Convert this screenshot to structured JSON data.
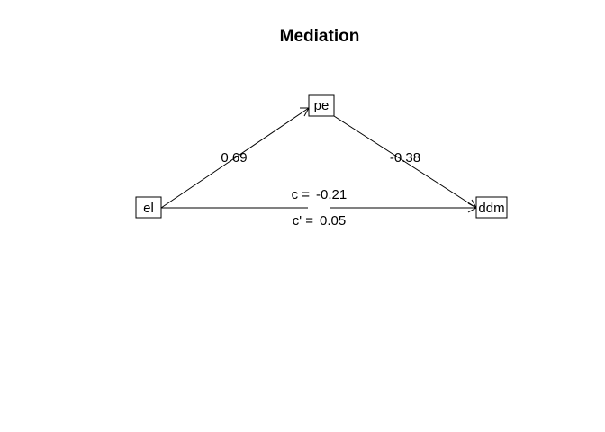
{
  "title": "Mediation",
  "nodes": {
    "x": "el",
    "m": "pe",
    "y": "ddm"
  },
  "paths": {
    "a": "0.69",
    "b": "-0.38",
    "c_label": "c =",
    "c_value": "-0.21",
    "c_prime_label": "c' =",
    "c_prime_value": "0.05"
  }
}
